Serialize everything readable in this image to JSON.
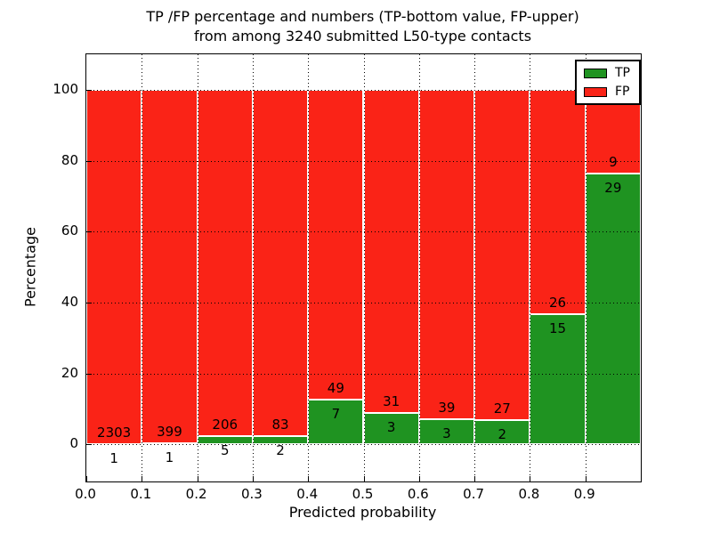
{
  "title": {
    "line1": "TP /FP percentage and numbers (TP-bottom value, FP-upper)",
    "line2": "from among 3240 submitted L50-type contacts"
  },
  "axes": {
    "xlabel": "Predicted probability",
    "ylabel": "Percentage",
    "xtick_labels": [
      "0.0",
      "0.1",
      "0.2",
      "0.3",
      "0.4",
      "0.5",
      "0.6",
      "0.7",
      "0.8",
      "0.9"
    ],
    "ytick_labels": [
      "0",
      "20",
      "40",
      "60",
      "80",
      "100"
    ],
    "ytick_values": [
      0,
      20,
      40,
      60,
      80,
      100
    ]
  },
  "legend": {
    "items": [
      {
        "label": "TP",
        "color": "#1f9321"
      },
      {
        "label": "FP",
        "color": "#fa2317"
      }
    ]
  },
  "colors": {
    "tp": "#1f9321",
    "fp": "#fa2317",
    "axis": "#000000",
    "background": "#ffffff"
  },
  "chart_data": {
    "type": "bar",
    "stacked": true,
    "normalized_to_percent": 100,
    "title": "TP /FP percentage and numbers (TP-bottom value, FP-upper) from among 3240 submitted L50-type contacts",
    "xlabel": "Predicted probability",
    "ylabel": "Percentage",
    "total_contacts": 3240,
    "bin_edges": [
      0.0,
      0.1,
      0.2,
      0.3,
      0.4,
      0.5,
      0.6,
      0.7,
      0.8,
      0.9,
      1.0
    ],
    "categories": [
      "0.0-0.1",
      "0.1-0.2",
      "0.2-0.3",
      "0.3-0.4",
      "0.4-0.5",
      "0.5-0.6",
      "0.6-0.7",
      "0.7-0.8",
      "0.8-0.9",
      "0.9-1.0"
    ],
    "series": [
      {
        "name": "TP",
        "position": "bottom",
        "color": "#1f9321",
        "counts": [
          1,
          1,
          5,
          2,
          7,
          3,
          3,
          2,
          15,
          29
        ]
      },
      {
        "name": "FP",
        "position": "top",
        "color": "#fa2317",
        "counts": [
          2303,
          399,
          206,
          83,
          49,
          31,
          39,
          27,
          26,
          9
        ]
      }
    ],
    "tp_percent_of_bin": [
      0.04,
      0.25,
      2.37,
      2.35,
      12.5,
      8.82,
      7.14,
      6.9,
      36.59,
      76.32
    ],
    "xlim": [
      0.0,
      1.0
    ],
    "ylim": [
      -10.5,
      110
    ],
    "grid": "dotted",
    "legend_position": "upper right"
  }
}
